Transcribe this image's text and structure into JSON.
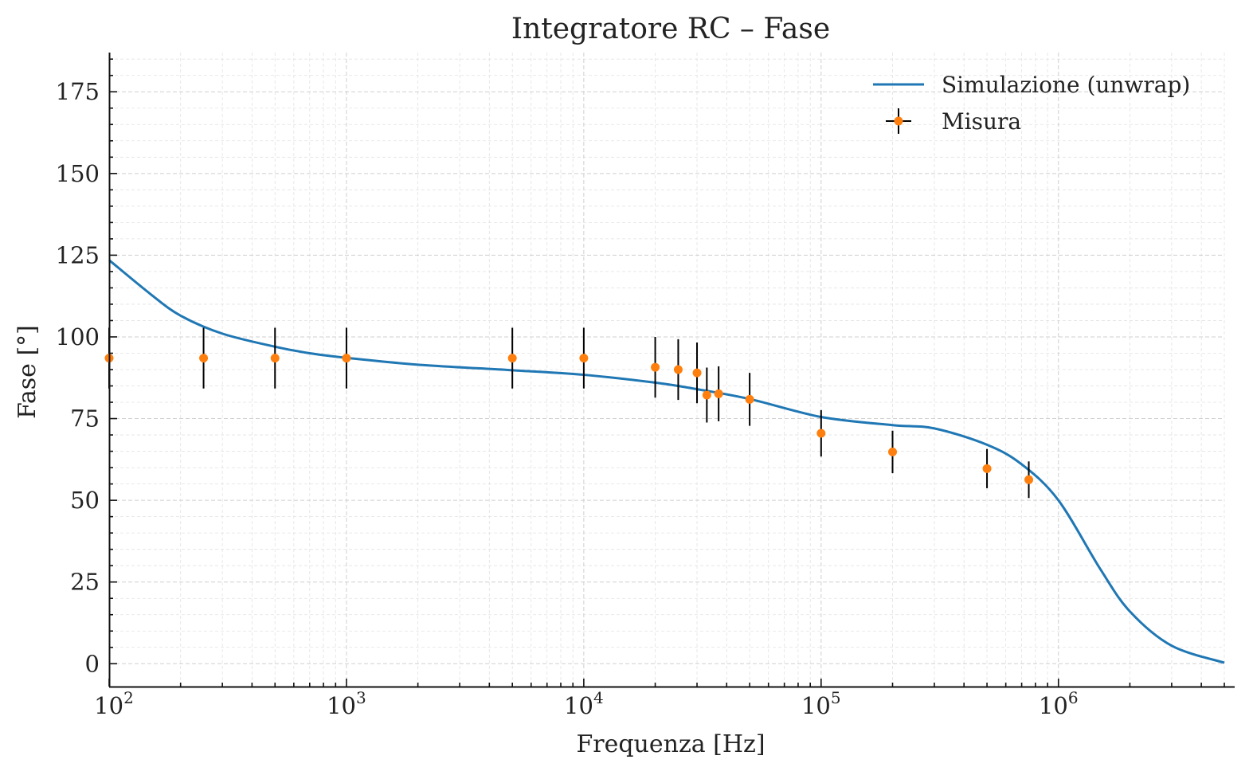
{
  "chart_data": {
    "type": "scatter",
    "title": "Integratore RC – Fase",
    "xlabel": "Frequenza [Hz]",
    "ylabel": "Fase [°]",
    "xscale": "log",
    "xlim": [
      100,
      5000000
    ],
    "ylim": [
      -7,
      187
    ],
    "x_ticks": [
      {
        "base": "10",
        "exp": "2"
      },
      {
        "base": "10",
        "exp": "3"
      },
      {
        "base": "10",
        "exp": "4"
      },
      {
        "base": "10",
        "exp": "5"
      },
      {
        "base": "10",
        "exp": "6"
      }
    ],
    "y_ticks": [
      "0",
      "25",
      "50",
      "75",
      "100",
      "125",
      "150",
      "175"
    ],
    "grid": true,
    "legend_position": "top-right",
    "colors": {
      "simulation": "#1f77b4",
      "measurement": "#ff7f0e",
      "errorbar": "#000000"
    },
    "series": [
      {
        "name": "Simulazione (unwrap)",
        "kind": "line",
        "x": [
          100,
          150,
          200,
          300,
          500,
          700,
          1000,
          2000,
          5000,
          10000,
          20000,
          30000,
          50000,
          100000,
          200000,
          300000,
          500000,
          700000,
          1000000,
          1500000,
          2000000,
          3000000,
          5000000
        ],
        "y": [
          123.5,
          113,
          106.5,
          101,
          97,
          95,
          93.6,
          91.5,
          89.8,
          88.4,
          86,
          84,
          81,
          75.5,
          73,
          72,
          67,
          61,
          50,
          29,
          16,
          5.5,
          0.3
        ]
      },
      {
        "name": "Misura",
        "kind": "errorbar",
        "x": [
          100,
          250,
          500,
          1000,
          5000,
          10000,
          20000,
          25000,
          30000,
          33000,
          37000,
          50000,
          100000,
          200000,
          500000,
          750000
        ],
        "y": [
          93.5,
          93.5,
          93.5,
          93.5,
          93.5,
          93.5,
          90.7,
          90,
          89,
          82.2,
          82.6,
          80.9,
          70.5,
          64.8,
          59.7,
          56.3
        ],
        "yerr": [
          9.3,
          9.3,
          9.3,
          9.3,
          9.3,
          9.3,
          9.3,
          9.3,
          9.3,
          8.4,
          8.4,
          8.1,
          7.1,
          6.5,
          6.0,
          5.6
        ]
      }
    ]
  }
}
